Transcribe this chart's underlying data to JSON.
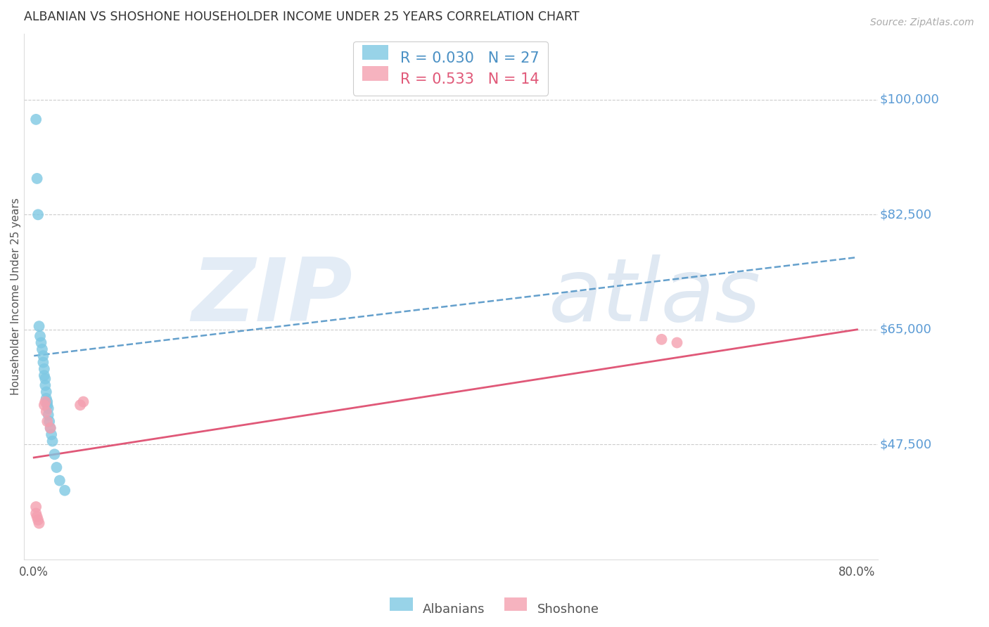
{
  "title": "ALBANIAN VS SHOSHONE HOUSEHOLDER INCOME UNDER 25 YEARS CORRELATION CHART",
  "source": "Source: ZipAtlas.com",
  "ylabel": "Householder Income Under 25 years",
  "watermark_zip": "ZIP",
  "watermark_atlas": "atlas",
  "xlim": [
    -0.01,
    0.82
  ],
  "ylim": [
    30000,
    110000
  ],
  "yticks": [
    47500,
    65000,
    82500,
    100000
  ],
  "ytick_labels": [
    "$47,500",
    "$65,000",
    "$82,500",
    "$100,000"
  ],
  "xtick_vals": [
    0.0,
    0.8
  ],
  "xtick_labels": [
    "0.0%",
    "80.0%"
  ],
  "albanian_R": "0.030",
  "albanian_N": "27",
  "shoshone_R": "0.533",
  "shoshone_N": "14",
  "albanian_color": "#7ec8e3",
  "shoshone_color": "#f4a0b0",
  "albanian_line_color": "#4a90c4",
  "shoshone_line_color": "#e05878",
  "title_color": "#333333",
  "axis_tick_color": "#5b9bd5",
  "grid_color": "#cccccc",
  "albanian_x": [
    0.002,
    0.003,
    0.004,
    0.005,
    0.006,
    0.007,
    0.008,
    0.009,
    0.009,
    0.01,
    0.01,
    0.011,
    0.011,
    0.012,
    0.012,
    0.013,
    0.013,
    0.014,
    0.014,
    0.015,
    0.016,
    0.017,
    0.018,
    0.02,
    0.022,
    0.025,
    0.03
  ],
  "albanian_y": [
    97000,
    88000,
    82500,
    65500,
    64000,
    63000,
    62000,
    61000,
    60000,
    59000,
    58000,
    57500,
    56500,
    55500,
    54500,
    54000,
    53500,
    53000,
    52000,
    51000,
    50000,
    49000,
    48000,
    46000,
    44000,
    42000,
    40500
  ],
  "shoshone_x": [
    0.002,
    0.003,
    0.004,
    0.005,
    0.01,
    0.011,
    0.012,
    0.013,
    0.016,
    0.045,
    0.048,
    0.61,
    0.625,
    0.002
  ],
  "shoshone_y": [
    37000,
    36500,
    36000,
    35500,
    53500,
    54000,
    52500,
    51000,
    50000,
    53500,
    54000,
    63500,
    63000,
    38000
  ],
  "albanian_trend_x": [
    0.0,
    0.8
  ],
  "albanian_trend_y": [
    61000,
    76000
  ],
  "shoshone_trend_x": [
    0.0,
    0.8
  ],
  "shoshone_trend_y": [
    45500,
    65000
  ]
}
